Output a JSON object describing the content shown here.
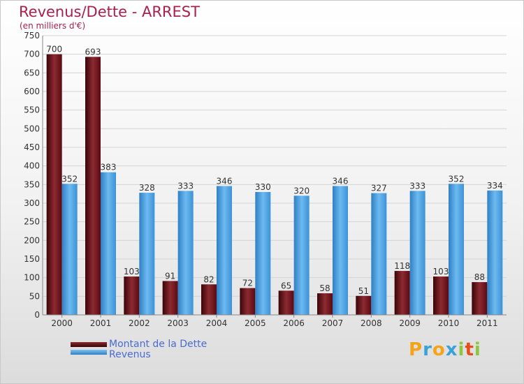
{
  "header": {
    "title": "Revenus/Dette - ARREST",
    "subtitle": "(en milliers d'€)"
  },
  "chart_data": {
    "type": "bar",
    "categories": [
      "2000",
      "2001",
      "2002",
      "2003",
      "2004",
      "2005",
      "2006",
      "2007",
      "2008",
      "2009",
      "2010",
      "2011"
    ],
    "series": [
      {
        "name": "Montant de la Dette",
        "values": [
          700,
          693,
          103,
          91,
          82,
          72,
          65,
          58,
          51,
          118,
          103,
          88
        ],
        "color": "#6e1018"
      },
      {
        "name": "Revenus",
        "values": [
          352,
          383,
          328,
          333,
          346,
          330,
          320,
          346,
          327,
          333,
          352,
          334
        ],
        "color": "#4ea3e3"
      }
    ],
    "ylim": [
      0,
      750
    ],
    "yticks": [
      0,
      50,
      100,
      150,
      200,
      250,
      300,
      350,
      400,
      450,
      500,
      550,
      600,
      650,
      700,
      750
    ],
    "grid": true,
    "legend": "bottom-left"
  },
  "legend": {
    "items": [
      {
        "label": "Montant de la Dette",
        "color": "#6e1018"
      },
      {
        "label": "Revenus",
        "color": "#4ea3e3"
      }
    ]
  },
  "logo": {
    "letters": [
      "P",
      "r",
      "o",
      "x",
      "i",
      "t",
      "i"
    ],
    "colors": [
      "#f4a416",
      "#3aa2db",
      "#f4a416",
      "#3aa2db",
      "#8dc63f",
      "#e84e1b",
      "#8dc63f"
    ]
  }
}
